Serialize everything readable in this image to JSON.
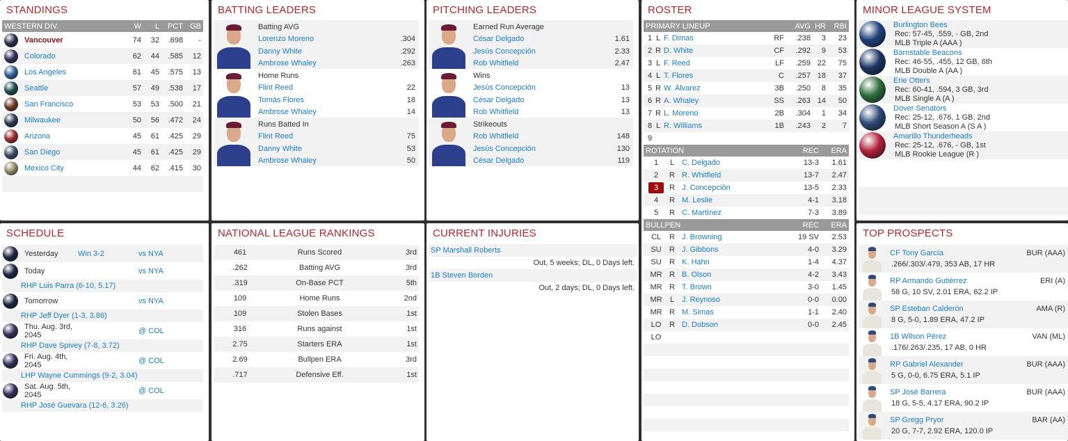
{
  "colors": {
    "title": "#b3262c",
    "link": "#1b7dc4",
    "header_bar": "#9a9a9a",
    "stripe": "#f2f2f2",
    "selected": "#9b0c0c"
  },
  "standings": {
    "title": "STANDINGS",
    "header": {
      "division": "WESTERN DIV.",
      "w": "W",
      "l": "L",
      "pct": "PCT",
      "gb": "GB"
    },
    "rows": [
      {
        "team": "Vancouver",
        "w": "74",
        "l": "32",
        "pct": ".698",
        "gb": "-",
        "current": true,
        "logo_color": "#2a3050"
      },
      {
        "team": "Colorado",
        "w": "62",
        "l": "44",
        "pct": ".585",
        "gb": "12",
        "logo_color": "#33305a"
      },
      {
        "team": "Los Angeles",
        "w": "61",
        "l": "45",
        "pct": ".575",
        "gb": "13",
        "logo_color": "#2e5f96"
      },
      {
        "team": "Seattle",
        "w": "57",
        "l": "49",
        "pct": ".538",
        "gb": "17",
        "logo_color": "#1f4a4f"
      },
      {
        "team": "San Francisco",
        "w": "53",
        "l": "53",
        "pct": ".500",
        "gb": "21",
        "logo_color": "#6a3b25"
      },
      {
        "team": "Milwaukee",
        "w": "50",
        "l": "56",
        "pct": ".472",
        "gb": "24",
        "logo_color": "#2c3a55"
      },
      {
        "team": "Arizona",
        "w": "45",
        "l": "61",
        "pct": ".425",
        "gb": "29",
        "logo_color": "#962a32"
      },
      {
        "team": "San Diego",
        "w": "45",
        "l": "61",
        "pct": ".425",
        "gb": "29",
        "logo_color": "#394a66"
      },
      {
        "team": "Mexico City",
        "w": "44",
        "l": "62",
        "pct": ".415",
        "gb": "30",
        "logo_color": "#8f8a6a"
      }
    ]
  },
  "batting_leaders": {
    "title": "BATTING LEADERS",
    "groups": [
      {
        "category": "Batting AVG",
        "leaders": [
          {
            "name": "Lorenzo Moreno",
            "value": ".304"
          },
          {
            "name": "Danny White",
            "value": ".292"
          },
          {
            "name": "Ambrose Whaley",
            "value": ".263"
          }
        ]
      },
      {
        "category": "Home Runs",
        "leaders": [
          {
            "name": "Flint Reed",
            "value": "22"
          },
          {
            "name": "Tomás Flores",
            "value": "18"
          },
          {
            "name": "Ambrose Whaley",
            "value": "14"
          }
        ]
      },
      {
        "category": "Runs Batted In",
        "leaders": [
          {
            "name": "Flint Reed",
            "value": "75"
          },
          {
            "name": "Danny White",
            "value": "53"
          },
          {
            "name": "Ambrose Whaley",
            "value": "50"
          }
        ]
      }
    ]
  },
  "pitching_leaders": {
    "title": "PITCHING LEADERS",
    "groups": [
      {
        "category": "Earned Run Average",
        "leaders": [
          {
            "name": "César Delgado",
            "value": "1.61"
          },
          {
            "name": "Jesús Concepción",
            "value": "2.33"
          },
          {
            "name": "Rob Whitfield",
            "value": "2.47"
          }
        ]
      },
      {
        "category": "Wins",
        "leaders": [
          {
            "name": "Jesús Concepción",
            "value": "13"
          },
          {
            "name": "César Delgado",
            "value": "13"
          },
          {
            "name": "Rob Whitfield",
            "value": "13"
          }
        ]
      },
      {
        "category": "Strikeouts",
        "leaders": [
          {
            "name": "Rob Whitfield",
            "value": "148"
          },
          {
            "name": "Jesús Concepción",
            "value": "130"
          },
          {
            "name": "César Delgado",
            "value": "119"
          }
        ]
      }
    ]
  },
  "roster": {
    "title": "ROSTER",
    "lineup": {
      "header": {
        "label": "PRIMARY LINEUP",
        "avg": "AVG",
        "hr": "HR",
        "rbi": "RBI"
      },
      "rows": [
        {
          "slot": "1",
          "bats": "L",
          "name": "F. Dimas",
          "pos": "RF",
          "avg": ".238",
          "hr": "3",
          "rbi": "23"
        },
        {
          "slot": "2",
          "bats": "R",
          "name": "D. White",
          "pos": "CF",
          "avg": ".292",
          "hr": "9",
          "rbi": "53"
        },
        {
          "slot": "3",
          "bats": "L",
          "name": "F. Reed",
          "pos": "LF",
          "avg": ".259",
          "hr": "22",
          "rbi": "75"
        },
        {
          "slot": "4",
          "bats": "L",
          "name": "T. Flores",
          "pos": "C",
          "avg": ".257",
          "hr": "18",
          "rbi": "37"
        },
        {
          "slot": "5",
          "bats": "R",
          "name": "W. Álvarez",
          "pos": "3B",
          "avg": ".250",
          "hr": "8",
          "rbi": "35"
        },
        {
          "slot": "6",
          "bats": "R",
          "name": "A. Whaley",
          "pos": "SS",
          "avg": ".263",
          "hr": "14",
          "rbi": "50"
        },
        {
          "slot": "7",
          "bats": "R",
          "name": "L. Moreno",
          "pos": "2B",
          "avg": ".304",
          "hr": "1",
          "rbi": "34"
        },
        {
          "slot": "8",
          "bats": "L",
          "name": "R. Williams",
          "pos": "1B",
          "avg": ".243",
          "hr": "2",
          "rbi": "7"
        },
        {
          "slot": "9"
        }
      ]
    },
    "rotation": {
      "header": {
        "label": "ROTATION",
        "rec": "REC",
        "era": "ERA"
      },
      "rows": [
        {
          "slot": "1",
          "throws": "L",
          "name": "C. Delgado",
          "rec": "13-3",
          "era": "1.61"
        },
        {
          "slot": "2",
          "throws": "R",
          "name": "R. Whitfield",
          "rec": "13-7",
          "era": "2.47"
        },
        {
          "slot": "3",
          "throws": "R",
          "name": "J. Concepción",
          "rec": "13-5",
          "era": "2.33",
          "selected": true
        },
        {
          "slot": "4",
          "throws": "R",
          "name": "M. Leslie",
          "rec": "4-1",
          "era": "3.18"
        },
        {
          "slot": "5",
          "throws": "R",
          "name": "C. Martínez",
          "rec": "7-3",
          "era": "3.89"
        }
      ]
    },
    "bullpen": {
      "header": {
        "label": "BULLPEN",
        "rec": "REC",
        "era": "ERA"
      },
      "rows": [
        {
          "role": "CL",
          "throws": "R",
          "name": "J. Browning",
          "rec": "19 SV",
          "era": "2.53"
        },
        {
          "role": "SU",
          "throws": "R",
          "name": "J. Gibbons",
          "rec": "4-0",
          "era": "3.29"
        },
        {
          "role": "SU",
          "throws": "R",
          "name": "K. Hahn",
          "rec": "1-4",
          "era": "4.37"
        },
        {
          "role": "MR",
          "throws": "R",
          "name": "B. Olson",
          "rec": "4-2",
          "era": "3.43"
        },
        {
          "role": "MR",
          "throws": "R",
          "name": "T. Brown",
          "rec": "3-0",
          "era": "1.45"
        },
        {
          "role": "MR",
          "throws": "L",
          "name": "J. Reynoso",
          "rec": "0-0",
          "era": "0.00"
        },
        {
          "role": "MR",
          "throws": "R",
          "name": "M. Simas",
          "rec": "1-1",
          "era": "2.40"
        },
        {
          "role": "LO",
          "throws": "R",
          "name": "D. Dobson",
          "rec": "0-0",
          "era": "2.45"
        },
        {
          "role": "LO"
        }
      ]
    }
  },
  "minor_league": {
    "title": "MINOR LEAGUE SYSTEM",
    "teams": [
      {
        "name": "Burlington Bees",
        "record": "Rec: 57-45, .559, - GB, 2nd",
        "level": "MLB Triple A (AAA )",
        "logo_color": "#1f3f7a"
      },
      {
        "name": "Barnstable Beacons",
        "record": "Rec: 46-55, .455, 12 GB, 6th",
        "level": "MLB Double A (AA )",
        "logo_color": "#1c3566"
      },
      {
        "name": "Erie Otters",
        "record": "Rec: 60-41, .594, 3 GB, 3rd",
        "level": "MLB Single A (A )",
        "logo_color": "#2e6b3a"
      },
      {
        "name": "Dover Senators",
        "record": "Rec: 25-12, .676, 1 GB, 2nd",
        "level": "MLB Short Season A (S A )",
        "logo_color": "#2d4a78"
      },
      {
        "name": "Amarillo Thunderheads",
        "record": "Rec: 25-12, .676, - GB, 1st",
        "level": "MLB Rookie League (R )",
        "logo_color": "#b0203a"
      }
    ]
  },
  "schedule": {
    "title": "SCHEDULE",
    "games": [
      {
        "date": "Yesterday",
        "result": "Win 3-2",
        "opponent": "vs NYA",
        "logo_color": "#1d2540"
      },
      {
        "date": "Today",
        "opponent": "vs NYA",
        "pitcher": "RHP Luis Parra (6-10, 5.17)",
        "logo_color": "#1d2540"
      },
      {
        "date": "Tomorrow",
        "opponent": "vs NYA",
        "pitcher": "RHP Jeff Dyer (1-3, 3.86)",
        "logo_color": "#1d2540"
      },
      {
        "date": "Thu. Aug. 3rd, 2045",
        "opponent": "@ COL",
        "pitcher": "RHP Dave Spivey (7-8, 3.72)",
        "logo_color": "#33305a"
      },
      {
        "date": "Fri. Aug. 4th, 2045",
        "opponent": "@ COL",
        "pitcher": "LHP Wayne Cummings (9-2, 3.04)",
        "logo_color": "#33305a"
      },
      {
        "date": "Sat. Aug. 5th, 2045",
        "opponent": "@ COL",
        "pitcher": "RHP José Guevara (12-6, 3.26)",
        "logo_color": "#33305a"
      }
    ]
  },
  "rankings": {
    "title": "NATIONAL LEAGUE RANKINGS",
    "rows": [
      {
        "value": "461",
        "stat": "Runs Scored",
        "rank": "3rd"
      },
      {
        "value": ".262",
        "stat": "Batting AVG",
        "rank": "3rd"
      },
      {
        "value": ".319",
        "stat": "On-Base PCT",
        "rank": "5th"
      },
      {
        "value": "109",
        "stat": "Home Runs",
        "rank": "2nd"
      },
      {
        "value": "109",
        "stat": "Stolen Bases",
        "rank": "1st"
      },
      {
        "value": "316",
        "stat": "Runs against",
        "rank": "1st"
      },
      {
        "value": "2.75",
        "stat": "Starters ERA",
        "rank": "1st"
      },
      {
        "value": "2.69",
        "stat": "Bullpen ERA",
        "rank": "3rd"
      },
      {
        "value": ".717",
        "stat": "Defensive Eff.",
        "rank": "1st"
      }
    ]
  },
  "injuries": {
    "title": "CURRENT INJURIES",
    "items": [
      {
        "player": "SP Marshall Roberts",
        "status": "Out, 5 weeks; DL, 0 Days left."
      },
      {
        "player": "1B Steven Borden",
        "status": "Out, 2 days; DL, 0 Days left."
      }
    ]
  },
  "prospects": {
    "title": "TOP PROSPECTS",
    "items": [
      {
        "name": "CF Tony García",
        "team": "BUR (AAA)",
        "stats": ".266/.303/.479, 353 AB, 17 HR"
      },
      {
        "name": "RP Armando Gutiérrez",
        "team": "ERI (A)",
        "stats": "58 G, 10 SV, 2.01 ERA, 62.2 IP"
      },
      {
        "name": "SP Esteban Calderón",
        "team": "AMA (R)",
        "stats": "8 G, 5-0, 1.89 ERA, 47.2 IP"
      },
      {
        "name": "1B Wilson Pérez",
        "team": "VAN (ML)",
        "stats": ".176/.263/.235, 17 AB, 0 HR"
      },
      {
        "name": "RP Gabriel Alexander",
        "team": "BUR (AAA)",
        "stats": "5 G, 0-0, 6.75 ERA, 5.1 IP"
      },
      {
        "name": "SP José Barrera",
        "team": "BUR (AAA)",
        "stats": "18 G, 5-5, 4.17 ERA, 90.2 IP"
      },
      {
        "name": "SP Gregg Pryor",
        "team": "BAR (AA)",
        "stats": "20 G, 7-7, 2.92 ERA, 120.0 IP"
      }
    ]
  }
}
